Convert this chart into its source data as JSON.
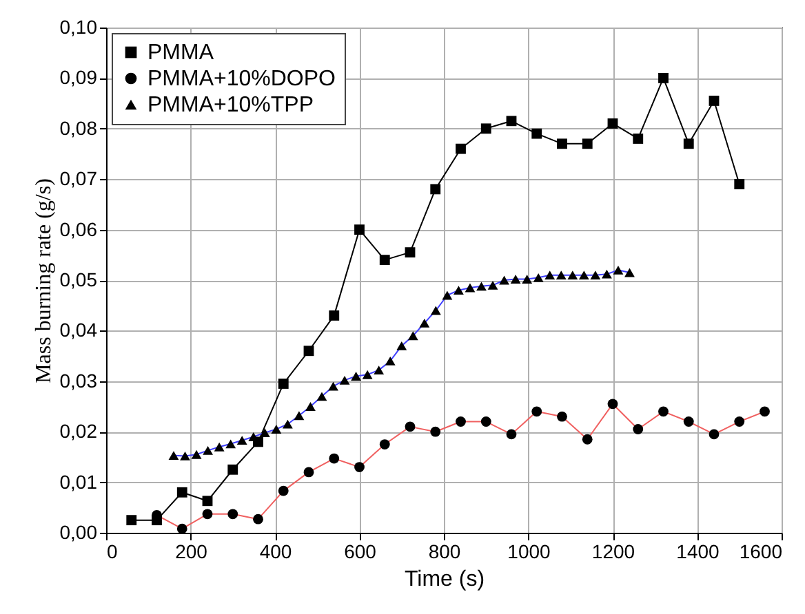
{
  "chart_data": {
    "type": "line",
    "xlabel": "Time (s)",
    "ylabel": "Mass burning rate (g/s)",
    "xlim": [
      0,
      1600
    ],
    "xticks": [
      0,
      200,
      400,
      600,
      800,
      1000,
      1200,
      1400,
      1600
    ],
    "ylim": [
      0,
      0.1
    ],
    "yticks": [
      {
        "value": 0,
        "label": "0,00"
      },
      {
        "value": 0.01,
        "label": "0,01"
      },
      {
        "value": 0.02,
        "label": "0,02"
      },
      {
        "value": 0.03,
        "label": "0,03"
      },
      {
        "value": 0.04,
        "label": "0,04"
      },
      {
        "value": 0.05,
        "label": "0,05"
      },
      {
        "value": 0.06,
        "label": "0,06"
      },
      {
        "value": 0.07,
        "label": "0,07"
      },
      {
        "value": 0.08,
        "label": "0,08"
      },
      {
        "value": 0.09,
        "label": "0,09"
      },
      {
        "value": 0.1,
        "label": "0,10"
      }
    ],
    "grid": true,
    "legend": "top left",
    "line_style": "solid",
    "series": [
      {
        "name": "PMMA",
        "color": "#000000",
        "marker": "square",
        "x": [
          60,
          120,
          180,
          240,
          300,
          360,
          420,
          480,
          540,
          600,
          660,
          720,
          780,
          840,
          900,
          960,
          1020,
          1080,
          1140,
          1200,
          1260,
          1320,
          1380,
          1440,
          1500
        ],
        "values": [
          0.0025,
          0.0025,
          0.008,
          0.0063,
          0.0125,
          0.018,
          0.0295,
          0.036,
          0.043,
          0.06,
          0.054,
          0.0555,
          0.068,
          0.076,
          0.08,
          0.0815,
          0.079,
          0.077,
          0.077,
          0.081,
          0.078,
          0.09,
          0.077,
          0.0855,
          0.069
        ]
      },
      {
        "name": "PMMA+10%DOPO",
        "color": "#f06060",
        "marker": "circle",
        "x": [
          120,
          180,
          240,
          300,
          360,
          420,
          480,
          540,
          600,
          660,
          720,
          780,
          840,
          900,
          960,
          1020,
          1080,
          1140,
          1200,
          1260,
          1320,
          1380,
          1440,
          1500,
          1560
        ],
        "values": [
          0.0035,
          0.0008,
          0.0037,
          0.0037,
          0.0027,
          0.0083,
          0.012,
          0.0147,
          0.013,
          0.0175,
          0.021,
          0.02,
          0.022,
          0.022,
          0.0195,
          0.024,
          0.023,
          0.0185,
          0.0255,
          0.0205,
          0.024,
          0.022,
          0.0195,
          0.022,
          0.024
        ]
      },
      {
        "name": "PMMA+10%TPP",
        "color": "#4040ff",
        "marker": "triangle",
        "x": [
          160,
          187,
          214,
          241,
          268,
          295,
          322,
          349,
          376,
          403,
          430,
          457,
          484,
          511,
          538,
          565,
          592,
          619,
          646,
          673,
          700,
          727,
          754,
          781,
          808,
          835,
          862,
          889,
          916,
          943,
          970,
          997,
          1024,
          1051,
          1078,
          1105,
          1132,
          1159,
          1186,
          1213,
          1240
        ],
        "values": [
          0.0153,
          0.0152,
          0.0155,
          0.0163,
          0.017,
          0.0176,
          0.0183,
          0.019,
          0.0198,
          0.0205,
          0.0215,
          0.0232,
          0.025,
          0.027,
          0.029,
          0.0302,
          0.031,
          0.0313,
          0.0322,
          0.034,
          0.037,
          0.039,
          0.0415,
          0.044,
          0.047,
          0.048,
          0.0485,
          0.0488,
          0.049,
          0.05,
          0.0502,
          0.0502,
          0.0505,
          0.051,
          0.051,
          0.051,
          0.051,
          0.051,
          0.0512,
          0.052,
          0.0515
        ]
      }
    ]
  }
}
